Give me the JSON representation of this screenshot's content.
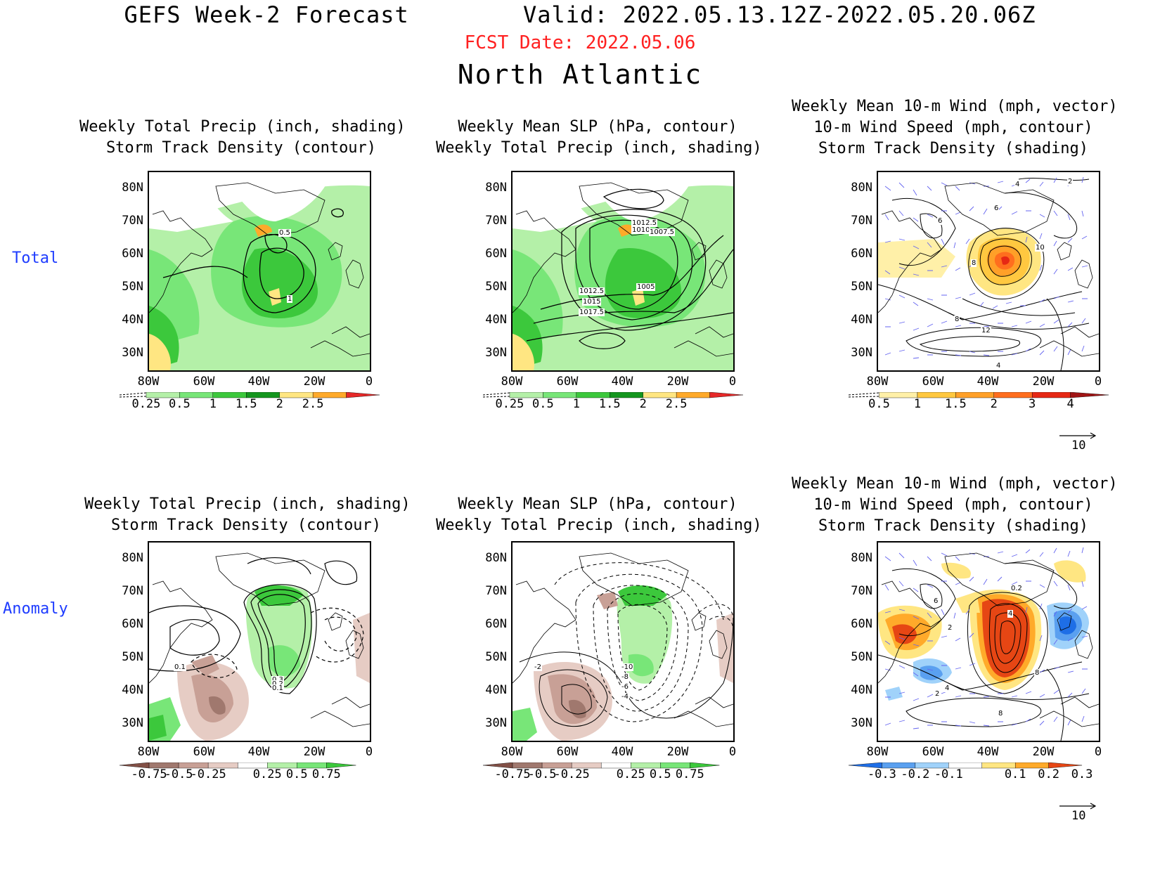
{
  "header": {
    "title": "GEFS Week-2 Forecast        Valid: 2022.05.13.12Z-2022.05.20.06Z",
    "fcst_date": "FCST Date: 2022.05.06",
    "region": "North Atlantic"
  },
  "rows": {
    "total": "Total",
    "anomaly": "Anomaly"
  },
  "axes": {
    "lat_labels": [
      "80N",
      "70N",
      "60N",
      "50N",
      "40N",
      "30N"
    ],
    "lon_labels": [
      "80W",
      "60W",
      "40W",
      "20W",
      "0"
    ]
  },
  "panels": {
    "total_precip": {
      "title": "Weekly Total Precip (inch, shading)\nStorm Track Density (contour)"
    },
    "total_slp": {
      "title": "Weekly Mean SLP (hPa, contour)\nWeekly Total Precip (inch, shading)"
    },
    "total_wind": {
      "title": "Weekly Mean 10-m Wind (mph, vector)\n10-m Wind Speed (mph, contour)\nStorm Track Density (shading)"
    },
    "anom_precip": {
      "title": "Weekly Total Precip (inch, shading)\nStorm Track Density (contour)"
    },
    "anom_slp": {
      "title": "Weekly Mean SLP (hPa, contour)\nWeekly Total Precip (inch, shading)"
    },
    "anom_wind": {
      "title": "Weekly Mean 10-m Wind (mph, vector)\n10-m Wind Speed (mph, contour)\nStorm Track Density (shading)"
    }
  },
  "contour_labels": {
    "total_precip": [
      "0.5",
      "1"
    ],
    "total_slp": [
      "1012.5",
      "1010",
      "1007.5",
      "1005",
      "1012.5",
      "1015",
      "1017.5"
    ],
    "total_wind": [
      "2",
      "4",
      "6",
      "6",
      "8",
      "10",
      "8",
      "12",
      "4"
    ],
    "anom_precip": [
      "0.1",
      "0.3",
      "0.2",
      "0.1"
    ],
    "anom_slp": [
      "-10",
      "-8",
      "-6",
      "-4",
      "-2"
    ],
    "anom_wind": [
      "0.2",
      "6",
      "4",
      "2",
      "8",
      "4",
      "2",
      "8"
    ]
  },
  "colorbars": {
    "precip_total": {
      "labels": [
        "0.25",
        "0.5",
        "1",
        "1.5",
        "2",
        "2.5"
      ],
      "colors": [
        "#b4f0a8",
        "#78e678",
        "#3cc83c",
        "#14961e",
        "#ffe682",
        "#ffaa2a",
        "#e62828"
      ]
    },
    "track_total": {
      "labels": [
        "0.5",
        "1",
        "1.5",
        "2",
        "3",
        "4"
      ],
      "colors": [
        "#fff0a8",
        "#ffc840",
        "#ffa028",
        "#ff6e1e",
        "#e62814",
        "#a01414"
      ]
    },
    "precip_anom": {
      "labels": [
        "-0.75",
        "-0.5",
        "-0.25",
        "0.25",
        "0.5",
        "0.75"
      ],
      "colors": [
        "#825046",
        "#a0786e",
        "#c8a096",
        "#e6ccc4",
        "#ffffff",
        "#b4f0a8",
        "#78e678",
        "#3cc83c"
      ]
    },
    "track_anom": {
      "labels": [
        "-0.3",
        "-0.2",
        "-0.1",
        "0.1",
        "0.2",
        "0.3"
      ],
      "colors": [
        "#1e6ee6",
        "#5aa0f0",
        "#a0d2fa",
        "#ffffff",
        "#ffe682",
        "#ffaa2a",
        "#e64614"
      ]
    }
  },
  "vector_reference": "10"
}
